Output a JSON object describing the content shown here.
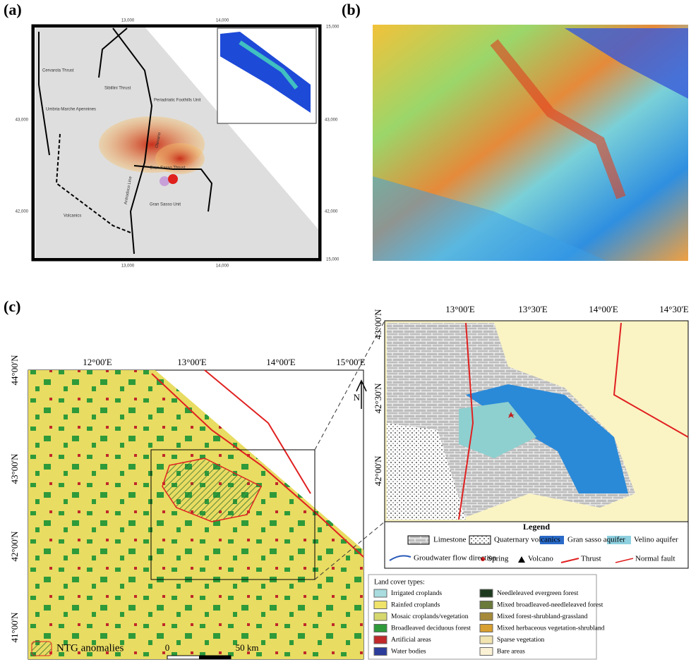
{
  "panel_a": {
    "label": "(a)",
    "top_ticks": [
      "13,000",
      "14,000",
      "15,000"
    ],
    "bottom_ticks": [
      "13,000",
      "14,000",
      "15,000"
    ],
    "left_ticks": [
      "43,000",
      "42,000"
    ],
    "right_ticks": [
      "43,000",
      "42,000"
    ],
    "map_labels": [
      "Cervarola Thrust",
      "Sibillini Thrust",
      "Periadriatic Foothills Unit",
      "Umbria-Marche Apennines",
      "Olevano",
      "Gran Sasso Thrust",
      "Antrodoco Line",
      "Gran Sasso Unit",
      "Volcanics"
    ]
  },
  "panel_b": {
    "label": "(b)"
  },
  "panel_c": {
    "label": "(c)",
    "main_map": {
      "lon_ticks": [
        "12°00'E",
        "13°00'E",
        "14°00'E",
        "15°00'E"
      ],
      "lat_ticks": [
        "44°00'N",
        "43°00'N",
        "42°00'N",
        "41°00'N"
      ],
      "north": "N",
      "scale": [
        "0",
        "50 km"
      ],
      "anomaly_legend": "NTG anomalies"
    },
    "inset_map": {
      "lon_ticks": [
        "13°00'E",
        "13°30'E",
        "14°00'E",
        "14°30'E"
      ],
      "lat_ticks": [
        "43°00'N",
        "42°30'N",
        "42°00'N"
      ],
      "legend_title": "Legend",
      "legend_items": [
        "Limestone",
        "Quaternary volcanics",
        "Gran sasso aquifer",
        "Velino aquifer",
        "Groudwater flow direction",
        "Spring",
        "Volcano",
        "Thrust",
        "Normal fault"
      ]
    },
    "land_cover": {
      "title": "Land cover types:",
      "items": [
        {
          "label": "Irrigated croplands",
          "color": "#a9dde0"
        },
        {
          "label": "Rainfed croplands",
          "color": "#f0e36a"
        },
        {
          "label": "Mosaic croplands/vegetation",
          "color": "#d6d86e"
        },
        {
          "label": "Broadleaved deciduous forest",
          "color": "#2e9a3a"
        },
        {
          "label": "Artificial areas",
          "color": "#c0282a"
        },
        {
          "label": "Water bodies",
          "color": "#2c3c9a"
        },
        {
          "label": "Needleleaved evergreen forest",
          "color": "#1e3a1e"
        },
        {
          "label": "Mixed broadleaved-needleleaved forest",
          "color": "#6a7a3a"
        },
        {
          "label": "Mixed forest-shrubland-grassland",
          "color": "#a68a3a"
        },
        {
          "label": "Mixed herbaceous vegetation-shrubland",
          "color": "#d8a030"
        },
        {
          "label": "Sparse vegetation",
          "color": "#f2e4b0"
        },
        {
          "label": "Bare areas",
          "color": "#fbf1d4"
        }
      ]
    }
  }
}
